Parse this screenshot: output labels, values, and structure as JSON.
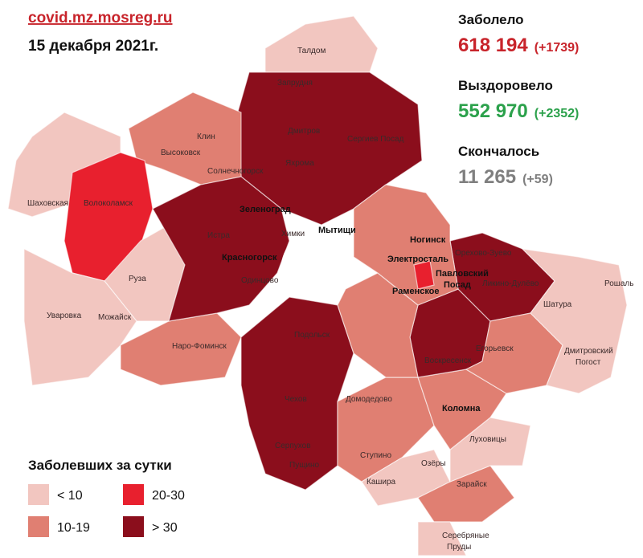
{
  "header": {
    "site": "covid.mz.mosreg.ru",
    "date": "15 декабря 2021г."
  },
  "stats": [
    {
      "label": "Заболело",
      "value": "618 194",
      "change": "(+1739)",
      "color": "#c8242b"
    },
    {
      "label": "Выздоровело",
      "value": "552 970",
      "change": "(+2352)",
      "color": "#2ba14b"
    },
    {
      "label": "Скончалось",
      "value": "11 265",
      "change": "(+59)",
      "color": "#7f7f7f"
    }
  ],
  "legend": {
    "title": "Заболевших за сутки",
    "items": [
      {
        "label": "< 10",
        "color": "#f2c6c0"
      },
      {
        "label": "10-19",
        "color": "#e07f72"
      },
      {
        "label": "20-30",
        "color": "#e8202e"
      },
      {
        "label": "> 30",
        "color": "#8b0e1c"
      }
    ]
  },
  "map": {
    "labels": [
      "Талдом",
      "Запрудня",
      "Дмитров",
      "Сергиев Посад",
      "Яхрома",
      "Клин",
      "Высоковск",
      "Солнечногорск",
      "Шаховская",
      "Волоколамск",
      "Истра",
      "Зеленоград",
      "Химки",
      "Мытищи",
      "Красногорск",
      "Одинцово",
      "Руза",
      "Уваровка",
      "Можайск",
      "Наро-Фоминск",
      "Ногинск",
      "Электросталь",
      "Павловский",
      "Посад",
      "Орехово-Зуево",
      "Ликино-Дулёво",
      "Рошаль",
      "Шатура",
      "Раменское",
      "Воскресенск",
      "Егорьевск",
      "Дмитровский",
      "Погост",
      "Чехов",
      "Серпухов",
      "Пущино",
      "Ступино",
      "Кашира",
      "Озёры",
      "Луховицы",
      "Коломна",
      "Зарайск",
      "Серебряные",
      "Пруды",
      "Подольск",
      "Домодедово"
    ]
  }
}
